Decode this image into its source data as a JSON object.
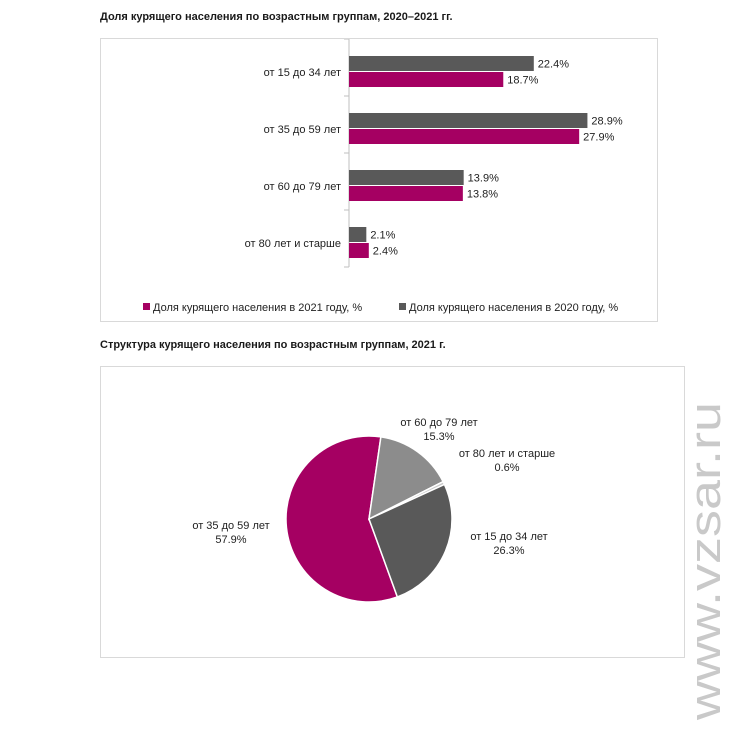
{
  "chart_data": [
    {
      "type": "bar",
      "orientation": "horizontal",
      "title": "Доля курящего населения по возрастным группам, 2020–2021 гг.",
      "categories": [
        "от 15 до 34 лет",
        "от 35 до 59 лет",
        "от 60 до 79 лет",
        "от 80 лет и старше"
      ],
      "series": [
        {
          "name": "Доля курящего населения в 2020 году, %",
          "values": [
            22.4,
            28.9,
            13.9,
            2.1
          ],
          "labels": [
            "22.4%",
            "28.9%",
            "13.9%",
            "2.1%"
          ],
          "color": "#595959"
        },
        {
          "name": "Доля курящего населения в 2021 году, %",
          "values": [
            18.7,
            27.9,
            13.8,
            2.4
          ],
          "labels": [
            "18.7%",
            "27.9%",
            "13.8%",
            "2.4%"
          ],
          "color": "#a50062"
        }
      ],
      "legend_order": [
        "Доля курящего населения в 2021 году, %",
        "Доля курящего населения в 2020 году, %"
      ],
      "legend_position": "bottom",
      "xlim": [
        0,
        30
      ],
      "grid": false
    },
    {
      "type": "pie",
      "title": "Структура курящего населения по возрастным группам, 2021 г.",
      "slices": [
        {
          "label": "от 35 до 59 лет",
          "value": 57.9,
          "value_label": "57.9%",
          "color": "#a50062"
        },
        {
          "label": "от 60 до 79 лет",
          "value": 15.3,
          "value_label": "15.3%",
          "color": "#8c8c8c"
        },
        {
          "label": "от 80 лет и старше",
          "value": 0.6,
          "value_label": "0.6%",
          "color": "#c8c8c8"
        },
        {
          "label": "от 15 до 34 лет",
          "value": 26.3,
          "value_label": "26.3%",
          "color": "#595959"
        }
      ],
      "legend_position": "none"
    }
  ],
  "watermark": {
    "text": "www.vzsar.ru",
    "color": "#c9c9c9"
  }
}
